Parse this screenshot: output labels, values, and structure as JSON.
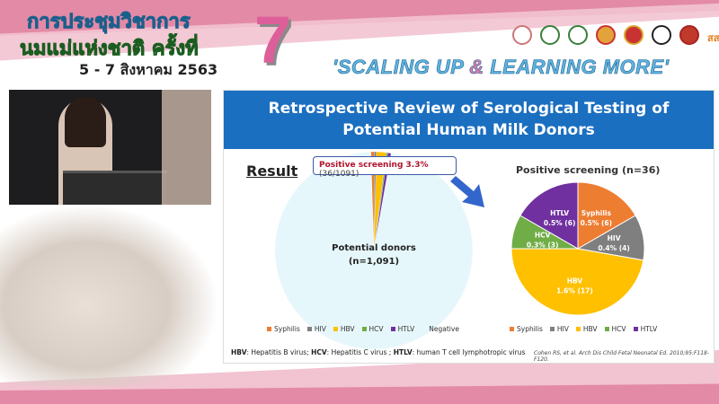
{
  "banner": {
    "title_line1": "การประชุมวิชาการ",
    "title_line2": "นมแม่แห่งชาติ ครั้งที่",
    "edition": "7",
    "dates": "5 - 7 สิงหาคม 2563",
    "slogan_part1": "'SCALING UP ",
    "slogan_amp": "&",
    "slogan_part2": " LEARNING MORE'",
    "logo_text": "สสส"
  },
  "slide": {
    "title_line1": "Retrospective Review of Serological Testing of",
    "title_line2": "Potential Human Milk Donors",
    "result_heading": "Result",
    "callout_bold": "Positive screening 3.3%",
    "callout_rest": " (36/1091)",
    "abbreviations": {
      "hbv_key": "HBV",
      "hbv": ": Hepatitis B virus; ",
      "hcv_key": "HCV",
      "hcv": ": Hepatitis C virus ; ",
      "htlv_key": "HTLV",
      "htlv": ": human T cell lymphotropic virus"
    },
    "citation": "Cohen RS, et al. Arch Dis Child Fetal Neonatal Ed. 2010;95:F118-F120."
  },
  "chart_data": [
    {
      "type": "pie",
      "center_label_line1": "Potential donors",
      "center_label_line2": "(n=1,091)",
      "categories": [
        "Syphilis",
        "HIV",
        "HBV",
        "HCV",
        "HTLV",
        "Negative"
      ],
      "values": [
        6,
        4,
        17,
        3,
        6,
        1055
      ],
      "colors": [
        "#ed7d31",
        "#7f7f7f",
        "#ffc000",
        "#70ad47",
        "#7030a0",
        "#e6f7fb"
      ],
      "legend": "bottom"
    },
    {
      "type": "pie",
      "title": "Positive screening (n=36)",
      "categories": [
        "Syphilis",
        "HIV",
        "HBV",
        "HCV",
        "HTLV"
      ],
      "values": [
        6,
        4,
        17,
        3,
        6
      ],
      "labels": [
        "0.5% (6)",
        "0.4% (4)",
        "1.6% (17)",
        "0.3% (3)",
        "0.5% (6)"
      ],
      "colors": [
        "#ed7d31",
        "#7f7f7f",
        "#ffc000",
        "#70ad47",
        "#7030a0"
      ],
      "legend": "bottom"
    }
  ]
}
